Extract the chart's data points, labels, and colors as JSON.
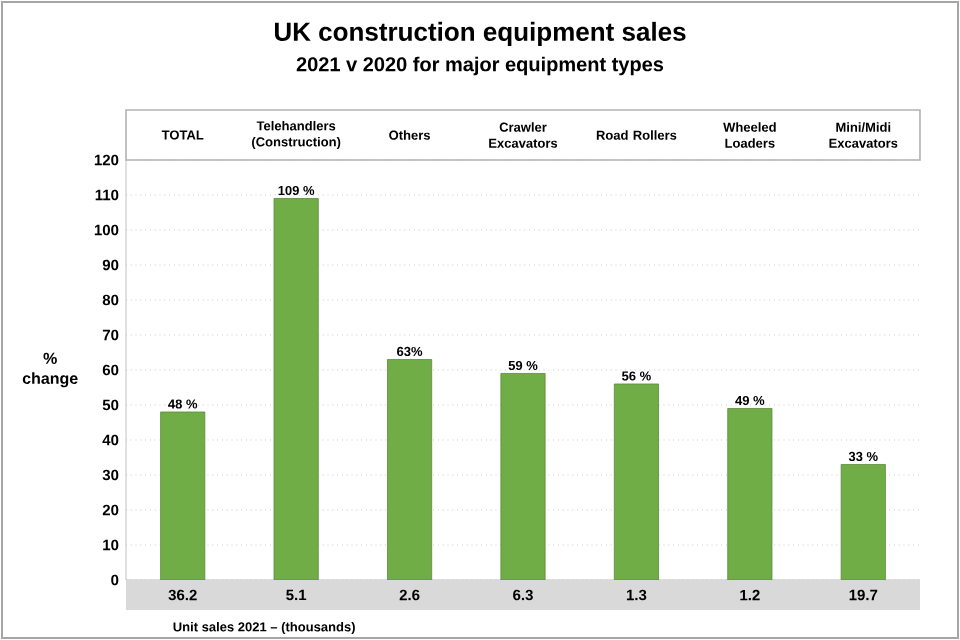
{
  "chart_data": {
    "type": "bar",
    "title": "UK construction equipment sales",
    "subtitle": "2021  v  2020 for major equipment types",
    "categories": [
      "TOTAL",
      "Telehandlers (Construction)",
      "Others",
      "Crawler Excavators",
      "Road Rollers",
      "Wheeled Loaders",
      "Mini/Midi Excavators"
    ],
    "values": [
      48,
      109,
      63,
      59,
      56,
      49,
      33
    ],
    "value_labels": [
      "48 %",
      "109 %",
      "63%",
      "59 %",
      "56 %",
      "49 %",
      "33 %"
    ],
    "color": "#70ad47",
    "ylabel": "% change",
    "ylim": [
      0,
      120
    ],
    "yticks": [
      0,
      10,
      20,
      30,
      40,
      50,
      60,
      70,
      80,
      90,
      100,
      110,
      120
    ],
    "grid": "y",
    "annotations": [
      "36.2",
      "5.1",
      "2.6",
      "6.3",
      "1.3",
      "1.2",
      "19.7",
      "Unit sales 2021 – (thousands)"
    ]
  }
}
